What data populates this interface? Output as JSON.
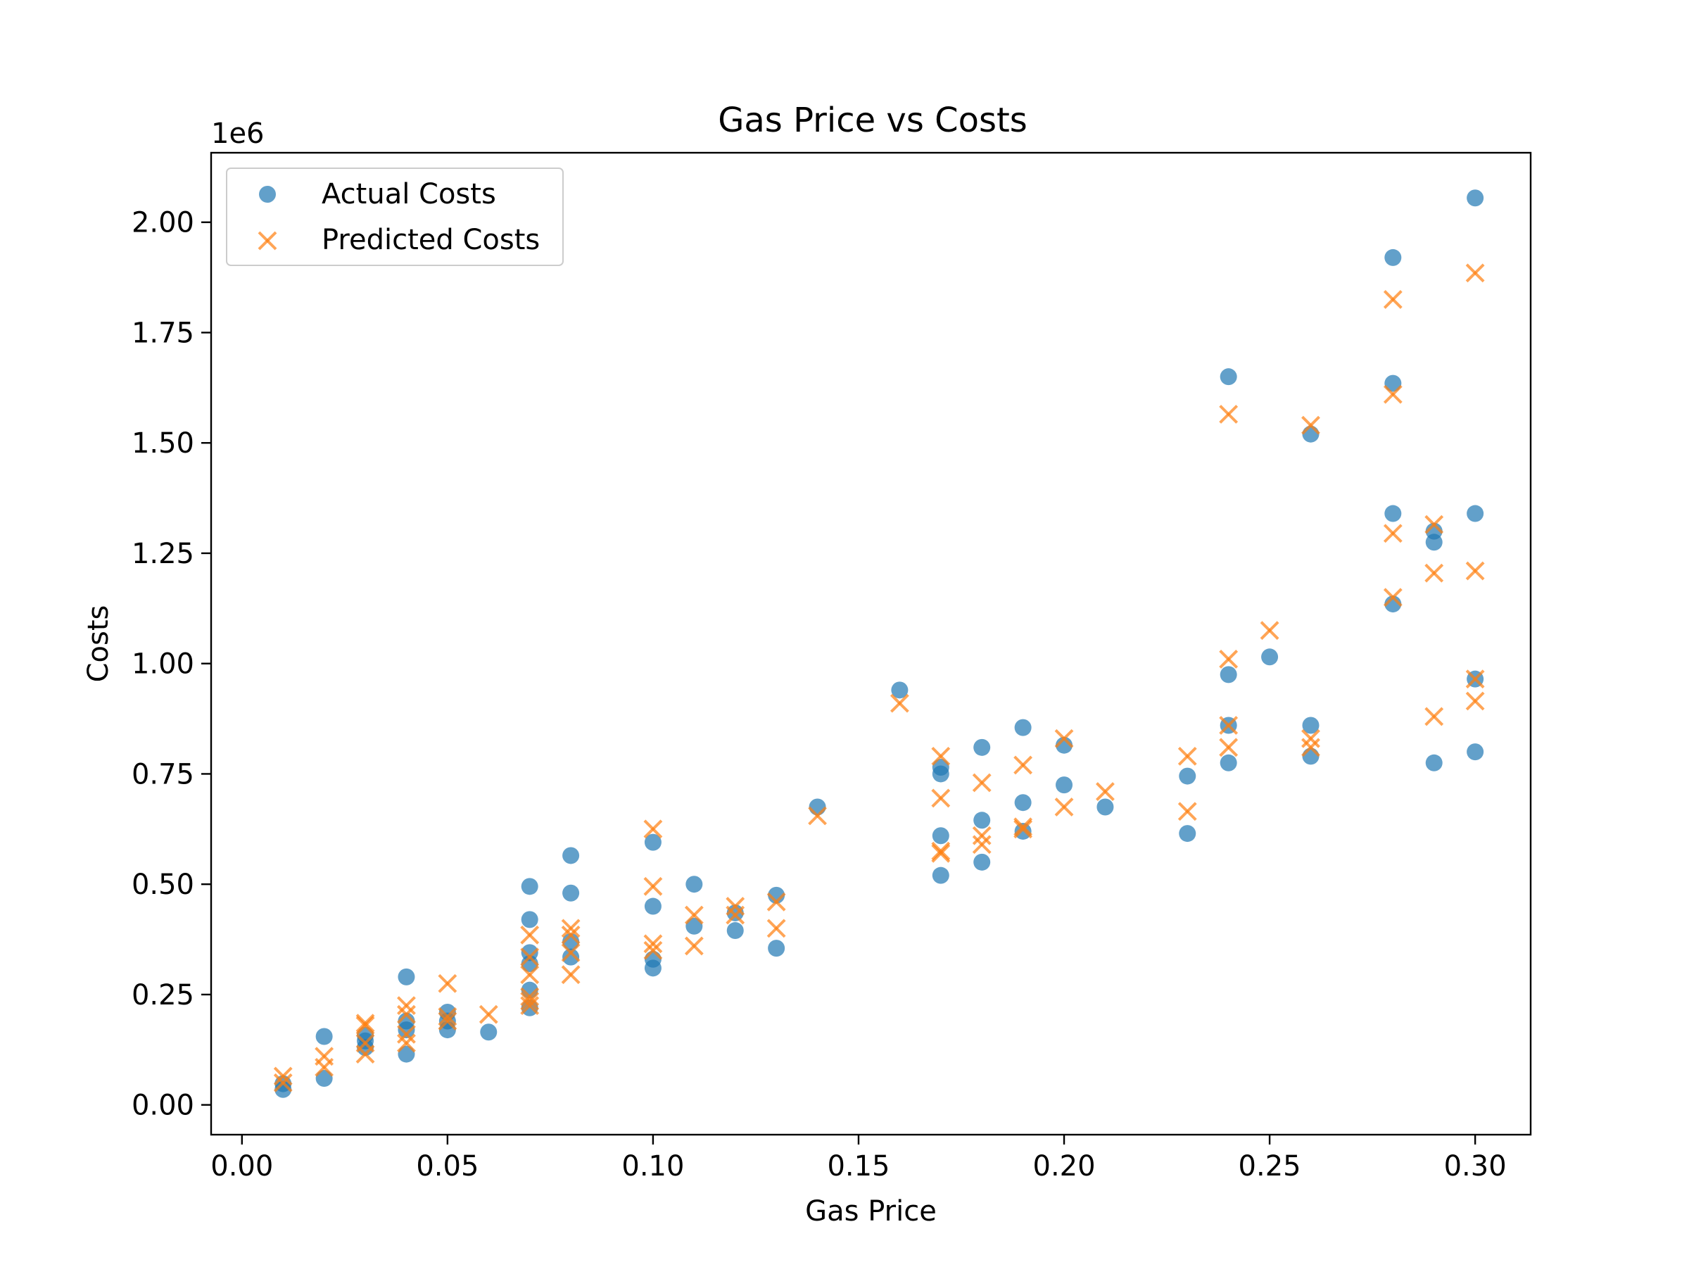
{
  "chart_data": {
    "type": "scatter",
    "title": "Gas Price vs Costs",
    "xlabel": "Gas Price",
    "ylabel": "Costs",
    "y_offset_label": "1e6",
    "xlim": [
      -0.0075,
      0.3135
    ],
    "ylim": [
      -0.0675,
      2.1575
    ],
    "ylim_units": "millions (×1e6)",
    "x_ticks": [
      0.0,
      0.05,
      0.1,
      0.15,
      0.2,
      0.25,
      0.3
    ],
    "x_tick_labels": [
      "0.00",
      "0.05",
      "0.10",
      "0.15",
      "0.20",
      "0.25",
      "0.30"
    ],
    "y_ticks": [
      0.0,
      0.25,
      0.5,
      0.75,
      1.0,
      1.25,
      1.5,
      1.75,
      2.0
    ],
    "y_tick_labels": [
      "0.00",
      "0.25",
      "0.50",
      "0.75",
      "1.00",
      "1.25",
      "1.50",
      "1.75",
      "2.00"
    ],
    "grid": false,
    "legend_position": "top-left",
    "series": [
      {
        "name": "Actual Costs",
        "marker": "circle",
        "color": "#1f77b4",
        "points": [
          [
            0.01,
            0.035
          ],
          [
            0.01,
            0.048
          ],
          [
            0.02,
            0.06
          ],
          [
            0.02,
            0.155
          ],
          [
            0.03,
            0.13
          ],
          [
            0.03,
            0.145
          ],
          [
            0.03,
            0.158
          ],
          [
            0.04,
            0.115
          ],
          [
            0.04,
            0.17
          ],
          [
            0.04,
            0.19
          ],
          [
            0.04,
            0.29
          ],
          [
            0.05,
            0.17
          ],
          [
            0.05,
            0.19
          ],
          [
            0.05,
            0.21
          ],
          [
            0.06,
            0.165
          ],
          [
            0.07,
            0.22
          ],
          [
            0.07,
            0.26
          ],
          [
            0.07,
            0.32
          ],
          [
            0.07,
            0.345
          ],
          [
            0.07,
            0.42
          ],
          [
            0.07,
            0.495
          ],
          [
            0.08,
            0.335
          ],
          [
            0.08,
            0.37
          ],
          [
            0.08,
            0.48
          ],
          [
            0.08,
            0.565
          ],
          [
            0.1,
            0.31
          ],
          [
            0.1,
            0.33
          ],
          [
            0.1,
            0.45
          ],
          [
            0.1,
            0.595
          ],
          [
            0.11,
            0.405
          ],
          [
            0.11,
            0.5
          ],
          [
            0.12,
            0.395
          ],
          [
            0.12,
            0.435
          ],
          [
            0.13,
            0.355
          ],
          [
            0.13,
            0.475
          ],
          [
            0.14,
            0.675
          ],
          [
            0.16,
            0.94
          ],
          [
            0.17,
            0.52
          ],
          [
            0.17,
            0.61
          ],
          [
            0.17,
            0.75
          ],
          [
            0.17,
            0.765
          ],
          [
            0.18,
            0.55
          ],
          [
            0.18,
            0.645
          ],
          [
            0.18,
            0.81
          ],
          [
            0.19,
            0.62
          ],
          [
            0.19,
            0.685
          ],
          [
            0.19,
            0.855
          ],
          [
            0.2,
            0.725
          ],
          [
            0.2,
            0.815
          ],
          [
            0.21,
            0.675
          ],
          [
            0.23,
            0.615
          ],
          [
            0.23,
            0.745
          ],
          [
            0.24,
            0.775
          ],
          [
            0.24,
            0.86
          ],
          [
            0.24,
            0.975
          ],
          [
            0.24,
            1.65
          ],
          [
            0.25,
            1.015
          ],
          [
            0.26,
            0.79
          ],
          [
            0.26,
            0.86
          ],
          [
            0.26,
            1.52
          ],
          [
            0.28,
            1.135
          ],
          [
            0.28,
            1.34
          ],
          [
            0.28,
            1.635
          ],
          [
            0.28,
            1.92
          ],
          [
            0.29,
            0.775
          ],
          [
            0.29,
            1.275
          ],
          [
            0.29,
            1.3
          ],
          [
            0.3,
            0.8
          ],
          [
            0.3,
            0.965
          ],
          [
            0.3,
            1.34
          ],
          [
            0.3,
            2.055
          ]
        ]
      },
      {
        "name": "Predicted Costs",
        "marker": "x",
        "color": "#ff7f0e",
        "points": [
          [
            0.01,
            0.05
          ],
          [
            0.01,
            0.065
          ],
          [
            0.02,
            0.085
          ],
          [
            0.02,
            0.11
          ],
          [
            0.03,
            0.115
          ],
          [
            0.03,
            0.14
          ],
          [
            0.03,
            0.18
          ],
          [
            0.03,
            0.185
          ],
          [
            0.04,
            0.14
          ],
          [
            0.04,
            0.16
          ],
          [
            0.04,
            0.205
          ],
          [
            0.04,
            0.225
          ],
          [
            0.05,
            0.19
          ],
          [
            0.05,
            0.2
          ],
          [
            0.05,
            0.275
          ],
          [
            0.06,
            0.205
          ],
          [
            0.07,
            0.225
          ],
          [
            0.07,
            0.235
          ],
          [
            0.07,
            0.245
          ],
          [
            0.07,
            0.295
          ],
          [
            0.07,
            0.335
          ],
          [
            0.07,
            0.385
          ],
          [
            0.08,
            0.295
          ],
          [
            0.08,
            0.345
          ],
          [
            0.08,
            0.385
          ],
          [
            0.08,
            0.4
          ],
          [
            0.1,
            0.35
          ],
          [
            0.1,
            0.365
          ],
          [
            0.1,
            0.495
          ],
          [
            0.1,
            0.625
          ],
          [
            0.11,
            0.36
          ],
          [
            0.11,
            0.43
          ],
          [
            0.12,
            0.43
          ],
          [
            0.12,
            0.45
          ],
          [
            0.13,
            0.4
          ],
          [
            0.13,
            0.46
          ],
          [
            0.14,
            0.655
          ],
          [
            0.16,
            0.91
          ],
          [
            0.17,
            0.57
          ],
          [
            0.17,
            0.575
          ],
          [
            0.17,
            0.695
          ],
          [
            0.17,
            0.79
          ],
          [
            0.18,
            0.59
          ],
          [
            0.18,
            0.61
          ],
          [
            0.18,
            0.73
          ],
          [
            0.19,
            0.625
          ],
          [
            0.19,
            0.63
          ],
          [
            0.19,
            0.77
          ],
          [
            0.2,
            0.675
          ],
          [
            0.2,
            0.83
          ],
          [
            0.21,
            0.71
          ],
          [
            0.23,
            0.665
          ],
          [
            0.23,
            0.79
          ],
          [
            0.24,
            0.81
          ],
          [
            0.24,
            0.86
          ],
          [
            0.24,
            1.01
          ],
          [
            0.24,
            1.565
          ],
          [
            0.25,
            1.075
          ],
          [
            0.26,
            0.81
          ],
          [
            0.26,
            0.83
          ],
          [
            0.26,
            1.54
          ],
          [
            0.28,
            1.15
          ],
          [
            0.28,
            1.295
          ],
          [
            0.28,
            1.61
          ],
          [
            0.28,
            1.825
          ],
          [
            0.29,
            0.88
          ],
          [
            0.29,
            1.205
          ],
          [
            0.29,
            1.315
          ],
          [
            0.3,
            0.915
          ],
          [
            0.3,
            0.965
          ],
          [
            0.3,
            1.21
          ],
          [
            0.3,
            1.885
          ]
        ]
      }
    ]
  }
}
